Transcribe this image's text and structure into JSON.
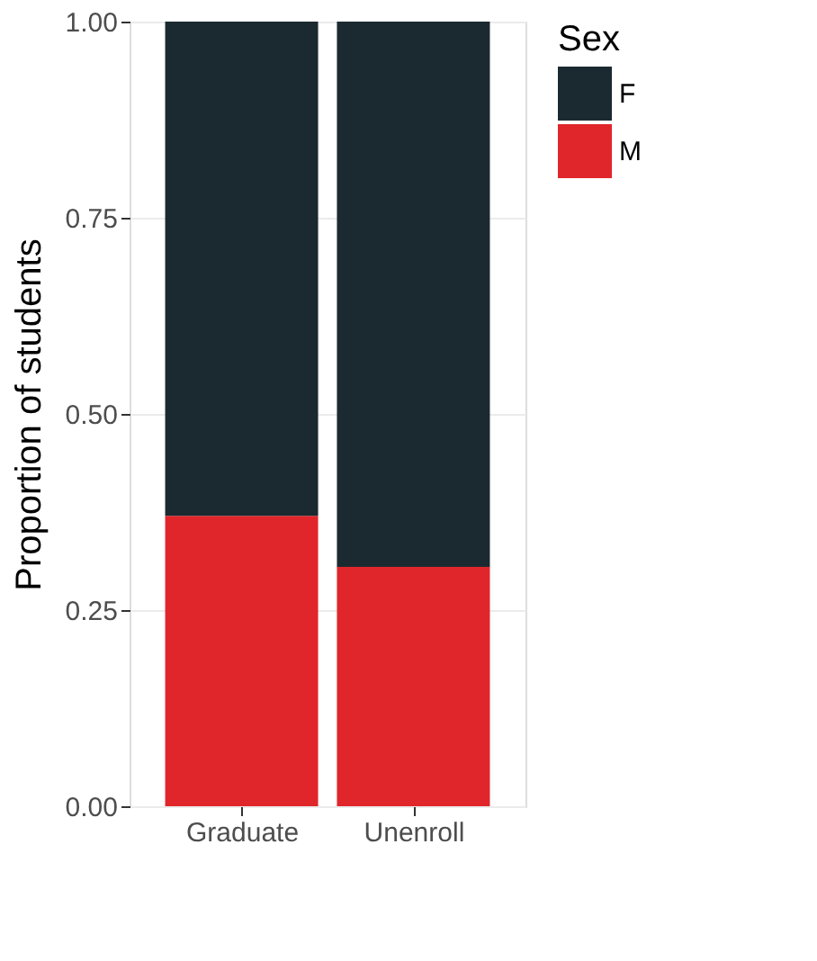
{
  "chart_data": {
    "type": "bar",
    "stacked": true,
    "ylabel": "Proportion of students",
    "legend_title": "Sex",
    "categories": [
      "Graduate",
      "Unenroll"
    ],
    "series": [
      {
        "name": "M",
        "color": "#e0262b",
        "values": [
          0.37,
          0.305
        ]
      },
      {
        "name": "F",
        "color": "#1b2a30",
        "values": [
          0.63,
          0.695
        ]
      }
    ],
    "ylim": [
      0,
      1.0
    ],
    "yticks": [
      {
        "value": 0,
        "label": "0.00"
      },
      {
        "value": 0.25,
        "label": "0.25"
      },
      {
        "value": 0.5,
        "label": "0.50"
      },
      {
        "value": 0.75,
        "label": "0.75"
      },
      {
        "value": 1.0,
        "label": "1.00"
      }
    ],
    "grid": true,
    "legend": "right"
  }
}
